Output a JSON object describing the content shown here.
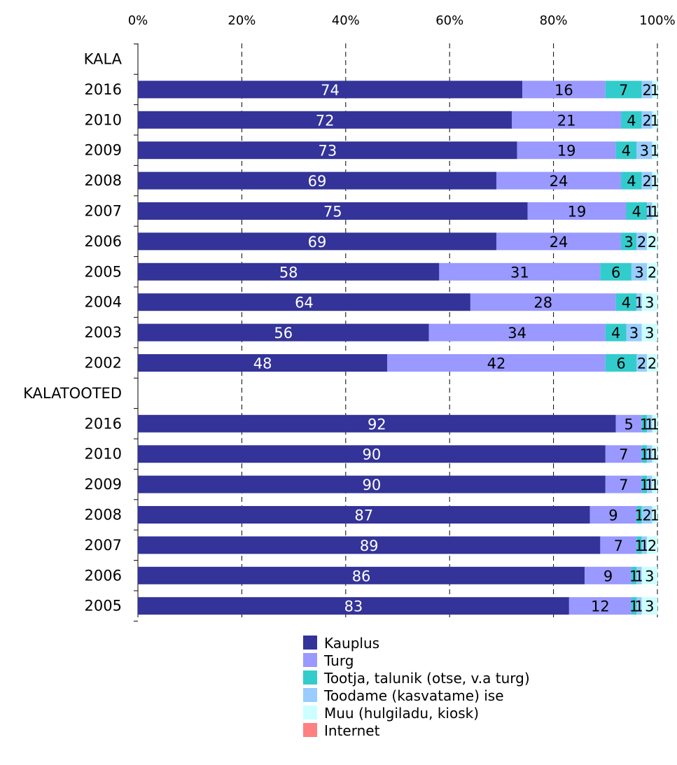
{
  "chart_data": {
    "type": "bar",
    "orientation": "horizontal",
    "stacked": "percent",
    "xlim": [
      0,
      100
    ],
    "x_ticks": [
      "0%",
      "20%",
      "40%",
      "60%",
      "80%",
      "100%"
    ],
    "x_ticks_position": "top",
    "grid": "vertical dashed",
    "legend_position": "bottom",
    "categories": [
      "KALA",
      "2016",
      "2010",
      "2009",
      "2008",
      "2007",
      "2006",
      "2005",
      "2004",
      "2003",
      "2002",
      "KALATOOTED",
      "2016",
      "2010",
      "2009",
      "2008",
      "2007",
      "2006",
      "2005"
    ],
    "series": [
      {
        "name": "Kauplus",
        "color": "#333399",
        "label_color": "#ffffff",
        "values": [
          null,
          74,
          72,
          73,
          69,
          75,
          69,
          58,
          64,
          56,
          48,
          null,
          92,
          90,
          90,
          87,
          89,
          86,
          83
        ]
      },
      {
        "name": "Turg",
        "color": "#9999ff",
        "label_color": "#000000",
        "values": [
          null,
          16,
          21,
          19,
          24,
          19,
          24,
          31,
          28,
          34,
          42,
          null,
          5,
          7,
          7,
          9,
          7,
          9,
          12
        ]
      },
      {
        "name": "Tootja, talunik (otse, v.a turg)",
        "color": "#33cccc",
        "label_color": "#000000",
        "values": [
          null,
          7,
          4,
          4,
          4,
          4,
          3,
          6,
          4,
          4,
          6,
          null,
          1,
          1,
          1,
          1,
          1,
          1,
          1
        ]
      },
      {
        "name": "Toodame (kasvatame) ise",
        "color": "#99ccff",
        "label_color": "#000000",
        "values": [
          null,
          2,
          2,
          3,
          2,
          1,
          2,
          3,
          1,
          3,
          2,
          null,
          1,
          1,
          1,
          2,
          1,
          1,
          1
        ]
      },
      {
        "name": "Muu (hulgiladu, kiosk)",
        "color": "#ccffff",
        "label_color": "#000000",
        "values": [
          null,
          1,
          1,
          1,
          1,
          1,
          2,
          2,
          3,
          3,
          2,
          null,
          1,
          1,
          1,
          1,
          2,
          3,
          3
        ]
      },
      {
        "name": "Internet",
        "color": "#ff8080",
        "label_color": "#000000",
        "values": [
          null,
          0,
          0,
          0,
          0,
          0,
          0,
          0,
          0,
          0,
          0,
          null,
          0,
          0,
          0,
          0,
          0,
          0,
          0
        ]
      }
    ]
  }
}
